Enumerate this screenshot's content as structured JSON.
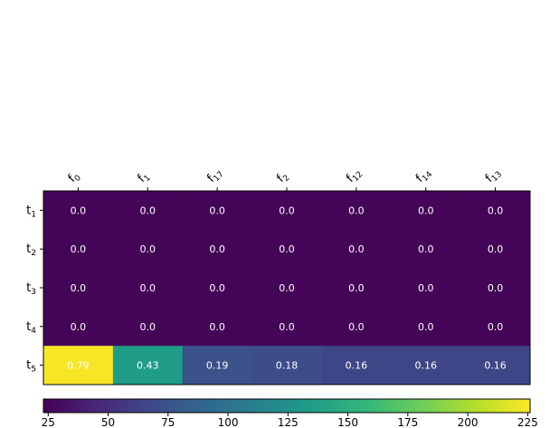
{
  "chart_data": {
    "type": "heatmap",
    "x_labels": [
      {
        "base": "f",
        "sub": "0"
      },
      {
        "base": "f",
        "sub": "1"
      },
      {
        "base": "f",
        "sub": "17"
      },
      {
        "base": "f",
        "sub": "2"
      },
      {
        "base": "f",
        "sub": "12"
      },
      {
        "base": "f",
        "sub": "14"
      },
      {
        "base": "f",
        "sub": "13"
      }
    ],
    "y_labels": [
      {
        "base": "t",
        "sub": "1"
      },
      {
        "base": "t",
        "sub": "2"
      },
      {
        "base": "t",
        "sub": "3"
      },
      {
        "base": "t",
        "sub": "4"
      },
      {
        "base": "t",
        "sub": "5"
      }
    ],
    "cell_labels": [
      [
        "0.0",
        "0.0",
        "0.0",
        "0.0",
        "0.0",
        "0.0",
        "0.0"
      ],
      [
        "0.0",
        "0.0",
        "0.0",
        "0.0",
        "0.0",
        "0.0",
        "0.0"
      ],
      [
        "0.0",
        "0.0",
        "0.0",
        "0.0",
        "0.0",
        "0.0",
        "0.0"
      ],
      [
        "0.0",
        "0.0",
        "0.0",
        "0.0",
        "0.0",
        "0.0",
        "0.0"
      ],
      [
        "0.79",
        "0.43",
        "0.19",
        "0.18",
        "0.16",
        "0.16",
        "0.16"
      ]
    ],
    "color_values": [
      [
        25,
        25,
        25,
        25,
        25,
        25,
        25
      ],
      [
        25,
        25,
        25,
        25,
        25,
        25,
        25
      ],
      [
        25,
        25,
        25,
        25,
        25,
        25,
        25
      ],
      [
        25,
        25,
        25,
        25,
        25,
        25,
        25
      ],
      [
        224,
        135,
        74,
        71,
        66,
        66,
        66
      ]
    ],
    "colorbar": {
      "min": 23,
      "max": 226,
      "ticks": [
        "25",
        "50",
        "75",
        "100",
        "125",
        "150",
        "175",
        "200",
        "225"
      ]
    },
    "colormap": "viridis",
    "colormap_stops": [
      "#440154",
      "#482878",
      "#3e4989",
      "#31688e",
      "#26828e",
      "#1f9e89",
      "#35b779",
      "#6ece58",
      "#b5de2b",
      "#fde725"
    ],
    "text_colors": {
      "light": "#ffffff",
      "dark": "#000000"
    }
  }
}
